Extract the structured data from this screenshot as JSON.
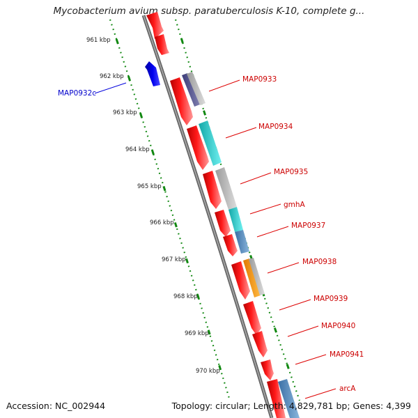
{
  "title": "Mycobacterium avium subsp. paratuberculosis K-10, complete g...",
  "footer": {
    "accession": "Accession: NC_002944",
    "summary": "Topology: circular; Length: 4,829,781 bp; Genes: 4,399"
  },
  "kbp_labels": [
    "961 kbp",
    "962 kbp",
    "963 kbp",
    "964 kbp",
    "965 kbp",
    "966 kbp",
    "967 kbp",
    "968 kbp",
    "969 kbp",
    "970 kbp"
  ],
  "genes": [
    {
      "name": "MAP0932c",
      "strand": "reverse",
      "color": "#0000cc"
    },
    {
      "name": "MAP0933",
      "strand": "forward",
      "color": "#cc0000"
    },
    {
      "name": "MAP0934",
      "strand": "forward",
      "color": "#cc0000"
    },
    {
      "name": "MAP0935",
      "strand": "forward",
      "color": "#cc0000"
    },
    {
      "name": "gmhA",
      "strand": "forward",
      "color": "#cc0000"
    },
    {
      "name": "MAP0937",
      "strand": "forward",
      "color": "#cc0000"
    },
    {
      "name": "MAP0938",
      "strand": "forward",
      "color": "#cc0000"
    },
    {
      "name": "MAP0939",
      "strand": "forward",
      "color": "#cc0000"
    },
    {
      "name": "MAP0940",
      "strand": "forward",
      "color": "#cc0000"
    },
    {
      "name": "MAP0941",
      "strand": "forward",
      "color": "#cc0000"
    },
    {
      "name": "arcA",
      "strand": "forward",
      "color": "#cc0000"
    }
  ],
  "colors": {
    "gene_forward": "#ee0000",
    "gene_reverse": "#0000dd",
    "backbone": "#777777",
    "tick": "#118811",
    "domain_gray": "#b8b8b8",
    "domain_navy": "#55558a",
    "domain_cyan": "#22c8c8",
    "domain_steel": "#4a82b8",
    "domain_orange": "#ff9900"
  }
}
